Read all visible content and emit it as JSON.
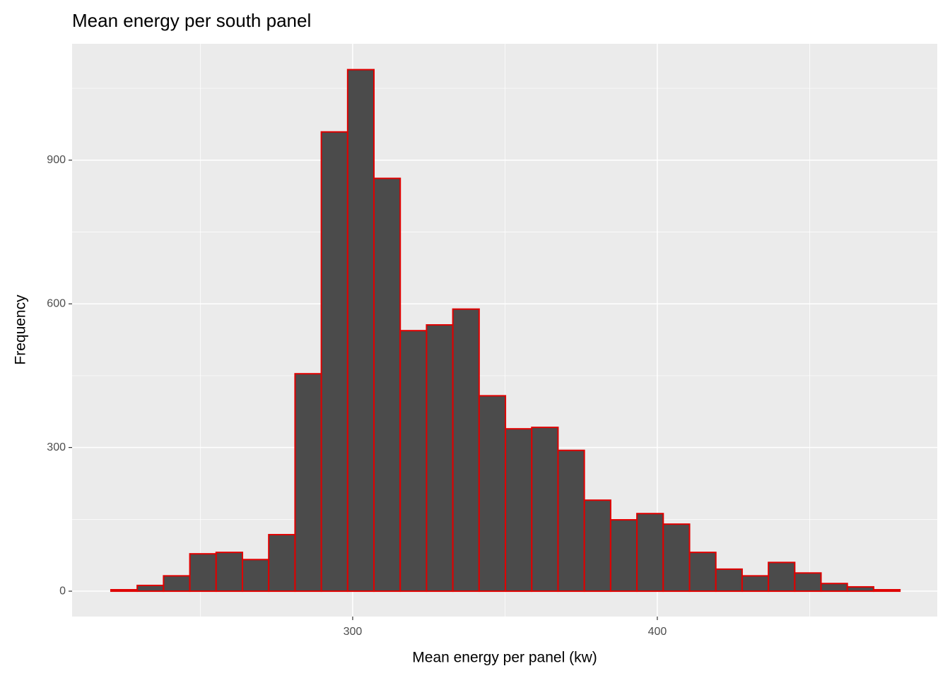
{
  "chart_data": {
    "type": "histogram",
    "title": "Mean energy per south panel",
    "x_label": "Mean energy per panel (kw)",
    "y_label": "Frequency",
    "bins": [
      220.65,
      229.28,
      237.92,
      246.55,
      255.18,
      263.82,
      272.45,
      281.08,
      289.71,
      298.35,
      306.98,
      315.61,
      324.25,
      332.88,
      341.51,
      350.15,
      358.78,
      367.41,
      376.04,
      384.68,
      393.31,
      401.94,
      410.58,
      419.21,
      427.84,
      436.48,
      445.11,
      453.74,
      462.37,
      471.01,
      479.64
    ],
    "values": [
      3,
      12,
      32,
      78,
      81,
      66,
      118,
      454,
      959,
      1089,
      862,
      544,
      556,
      589,
      408,
      339,
      342,
      294,
      190,
      149,
      162,
      140,
      81,
      46,
      32,
      60,
      38,
      16,
      9,
      3
    ],
    "color": "#474747",
    "edgecolor": "#e00000",
    "xlim": [
      207.9,
      491.9
    ],
    "ylim": [
      -53,
      1143
    ],
    "xticks": [
      300,
      400
    ],
    "yticks": [
      0,
      300,
      600,
      900
    ],
    "x_minor_grid": [
      250,
      350,
      450
    ],
    "y_minor_grid": [
      150,
      450,
      750,
      1050
    ],
    "grid": true
  }
}
